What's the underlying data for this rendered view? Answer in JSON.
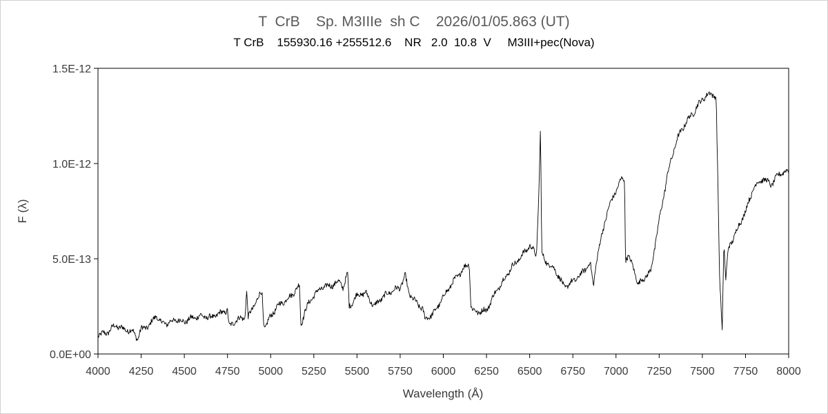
{
  "chart_data": {
    "type": "line",
    "title": "T  CrB    Sp. M3IIIe  sh C    2026/01/05.863 (UT)",
    "subtitle": "T CrB    155930.16 +255512.6    NR   2.0  10.8  V     M3III+pec(Nova)",
    "xlabel": "Wavelength (Å)",
    "ylabel": "F (λ)",
    "xlim": [
      4000,
      8000
    ],
    "ylim": [
      0,
      1.5e-12
    ],
    "x_ticks": [
      4000,
      4250,
      4500,
      4750,
      5000,
      5250,
      5500,
      5750,
      6000,
      6250,
      6500,
      6750,
      7000,
      7250,
      7500,
      7750,
      8000
    ],
    "x_tick_labels": [
      "4000",
      "4250",
      "4500",
      "4750",
      "5000",
      "5250",
      "5500",
      "5750",
      "6000",
      "6250",
      "6500",
      "6750",
      "7000",
      "7250",
      "7500",
      "7750",
      "8000"
    ],
    "y_ticks": [
      0,
      5e-13,
      1e-12,
      1.5e-12
    ],
    "y_tick_labels": [
      "0.0E+00",
      "5.0E-13",
      "1.0E-12",
      "1.5E-12"
    ],
    "grid": false,
    "legend": "none",
    "line_color": "#000000",
    "series": [
      {
        "x": [
          4000,
          4050,
          4100,
          4150,
          4200,
          4230,
          4250,
          4300,
          4340,
          4350,
          4400,
          4450,
          4500,
          4550,
          4600,
          4650,
          4700,
          4750,
          4760,
          4800,
          4850,
          4861,
          4870,
          4900,
          4950,
          4960,
          4970,
          5000,
          5050,
          5100,
          5150,
          5167,
          5175,
          5200,
          5250,
          5300,
          5350,
          5400,
          5420,
          5446,
          5455,
          5480,
          5500,
          5550,
          5600,
          5650,
          5700,
          5750,
          5780,
          5800,
          5850,
          5880,
          5895,
          5950,
          6000,
          6050,
          6100,
          6150,
          6160,
          6170,
          6200,
          6250,
          6300,
          6350,
          6400,
          6450,
          6500,
          6540,
          6555,
          6563,
          6570,
          6600,
          6650,
          6700,
          6750,
          6800,
          6850,
          6870,
          6880,
          6900,
          6950,
          7000,
          7040,
          7050,
          7055,
          7070,
          7100,
          7130,
          7150,
          7200,
          7250,
          7300,
          7350,
          7400,
          7450,
          7500,
          7550,
          7580,
          7590,
          7600,
          7615,
          7625,
          7635,
          7650,
          7700,
          7750,
          7800,
          7850,
          7900,
          7950,
          8000
        ],
        "y": [
          1e-13,
          1.1e-13,
          1.5e-13,
          1.3e-13,
          1.2e-13,
          8e-14,
          1.3e-13,
          1.5e-13,
          2.1e-13,
          1.7e-13,
          1.6e-13,
          1.8e-13,
          1.7e-13,
          1.9e-13,
          2e-13,
          1.9e-13,
          2.1e-13,
          2.3e-13,
          1.4e-13,
          1.8e-13,
          1.9e-13,
          3.3e-13,
          1.9e-13,
          2.5e-13,
          3.3e-13,
          1.5e-13,
          1.4e-13,
          2e-13,
          2.6e-13,
          2.9e-13,
          3.4e-13,
          3.6e-13,
          1.5e-13,
          2.3e-13,
          3.1e-13,
          3.5e-13,
          3.6e-13,
          3.8e-13,
          3.5e-13,
          4.2e-13,
          2.5e-13,
          2.8e-13,
          3.1e-13,
          3.2e-13,
          2.5e-13,
          3e-13,
          3.3e-13,
          3.5e-13,
          4.1e-13,
          3.2e-13,
          2.6e-13,
          2.4e-13,
          1.8e-13,
          2.2e-13,
          3e-13,
          3.7e-13,
          4.3e-13,
          4.8e-13,
          2.5e-13,
          2.3e-13,
          2.2e-13,
          2.3e-13,
          3.2e-13,
          3.9e-13,
          4.6e-13,
          5.1e-13,
          5.7e-13,
          5.2e-13,
          9e-13,
          1.2e-12,
          5.2e-13,
          4.8e-13,
          4.4e-13,
          3.5e-13,
          3.8e-13,
          4.2e-13,
          4.8e-13,
          3.5e-13,
          4.5e-13,
          5.5e-13,
          7.5e-13,
          8.6e-13,
          9.3e-13,
          9e-13,
          5e-13,
          5.1e-13,
          4.6e-13,
          3.6e-13,
          3.9e-13,
          4.3e-13,
          7e-13,
          9.5e-13,
          1.12e-12,
          1.21e-12,
          1.27e-12,
          1.34e-12,
          1.37e-12,
          1.35e-12,
          9e-13,
          4e-13,
          1.3e-13,
          6e-13,
          3.8e-13,
          5.5e-13,
          6.5e-13,
          7.5e-13,
          8.8e-13,
          9.2e-13,
          8.9e-13,
          9.5e-13,
          9.6e-13
        ]
      }
    ]
  }
}
